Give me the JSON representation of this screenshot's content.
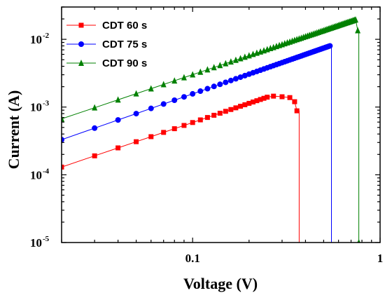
{
  "chart_data": {
    "type": "line",
    "xlabel": "Voltage (V)",
    "ylabel": "Current (A)",
    "xscale": "log",
    "yscale": "log",
    "xlim": [
      0.02,
      1
    ],
    "ylim": [
      1e-05,
      0.03
    ],
    "grid": false,
    "legend_position": "top-left",
    "x_ticks": [
      {
        "value": 0.1,
        "label": "0.1"
      },
      {
        "value": 1,
        "label": "1"
      }
    ],
    "y_ticks": [
      {
        "value": 1e-05,
        "base": "10",
        "exp": "-5"
      },
      {
        "value": 0.0001,
        "base": "10",
        "exp": "-4"
      },
      {
        "value": 0.001,
        "base": "10",
        "exp": "-3"
      },
      {
        "value": 0.01,
        "base": "10",
        "exp": "-2"
      }
    ],
    "series": [
      {
        "name": "CDT 60 s",
        "color": "#ff0000",
        "marker": "square",
        "start": [
          0.02,
          0.00013
        ],
        "end": [
          0.25,
          0.0014
        ],
        "peak": [
          0.27,
          0.00145
        ],
        "tail": [
          [
            0.3,
            0.00142
          ],
          [
            0.33,
            0.00138
          ],
          [
            0.35,
            0.0012
          ],
          [
            0.36,
            0.00088
          ]
        ],
        "drop": [
          0.37,
          1e-05
        ]
      },
      {
        "name": "CDT 75 s",
        "color": "#0000ff",
        "marker": "circle",
        "start": [
          0.02,
          0.00033
        ],
        "end": [
          0.54,
          0.008
        ],
        "peak": null,
        "tail": [],
        "drop": [
          0.55,
          1e-05
        ]
      },
      {
        "name": "CDT 90 s",
        "color": "#008000",
        "marker": "triangle",
        "start": [
          0.02,
          0.00067
        ],
        "end": [
          0.74,
          0.0195
        ],
        "peak": null,
        "tail": [
          [
            0.76,
            0.0135
          ]
        ],
        "drop": [
          0.77,
          1e-05
        ]
      }
    ]
  }
}
